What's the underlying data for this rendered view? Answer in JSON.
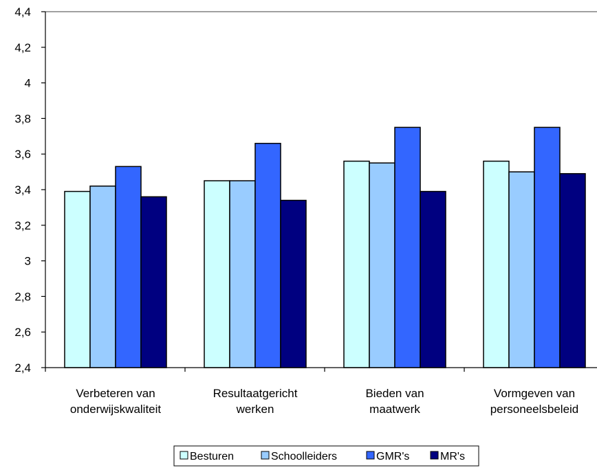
{
  "chart_data": {
    "type": "bar",
    "title": "",
    "xlabel": "",
    "ylabel": "",
    "ylim": [
      2.4,
      4.4
    ],
    "yticks": [
      2.4,
      2.6,
      2.8,
      3.0,
      3.2,
      3.4,
      3.6,
      3.8,
      4.0,
      4.2,
      4.4
    ],
    "ytick_labels": [
      "2,4",
      "2,6",
      "2,8",
      "3",
      "3,2",
      "3,4",
      "3,6",
      "3,8",
      "4",
      "4,2",
      "4,4"
    ],
    "grid": false,
    "legend_position": "bottom",
    "categories": [
      [
        "Verbeteren van",
        "onderwijskwaliteit"
      ],
      [
        "Resultaatgericht",
        "werken"
      ],
      [
        "Bieden van",
        "maatwerk"
      ],
      [
        "Vormgeven van",
        "personeelsbeleid"
      ]
    ],
    "series": [
      {
        "name": "Besturen",
        "color": "#ccffff",
        "values": [
          3.39,
          3.45,
          3.56,
          3.56
        ]
      },
      {
        "name": "Schoolleiders",
        "color": "#99ccff",
        "values": [
          3.42,
          3.45,
          3.55,
          3.5
        ]
      },
      {
        "name": "GMR's",
        "color": "#3366ff",
        "values": [
          3.53,
          3.66,
          3.75,
          3.75
        ]
      },
      {
        "name": "MR's",
        "color": "#000080",
        "values": [
          3.36,
          3.34,
          3.39,
          3.49
        ]
      }
    ]
  }
}
